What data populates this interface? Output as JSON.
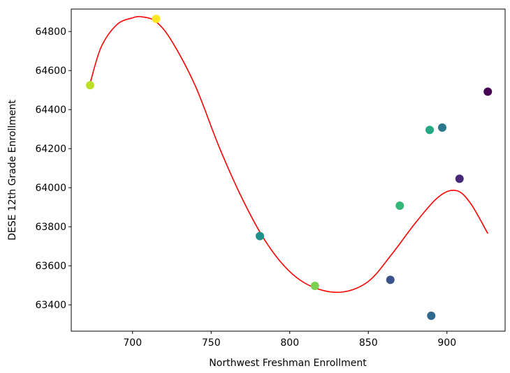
{
  "chart_data": {
    "type": "scatter",
    "title": "",
    "xlabel": "Northwest Freshman Enrollment",
    "ylabel": "DESE 12th Grade Enrollment",
    "xlim": [
      661,
      937
    ],
    "ylim": [
      63265,
      64915
    ],
    "x_ticks": [
      700,
      750,
      800,
      850,
      900
    ],
    "y_ticks": [
      63400,
      63600,
      63800,
      64000,
      64200,
      64400,
      64600,
      64800
    ],
    "grid": false,
    "legend": "none",
    "colormap": "viridis",
    "points": [
      {
        "x": 673,
        "y": 64525,
        "color": "#bddf26"
      },
      {
        "x": 715,
        "y": 64865,
        "color": "#fde725"
      },
      {
        "x": 781,
        "y": 63752,
        "color": "#21918c"
      },
      {
        "x": 816,
        "y": 63497,
        "color": "#7ad151"
      },
      {
        "x": 864,
        "y": 63528,
        "color": "#3b528b"
      },
      {
        "x": 870,
        "y": 63908,
        "color": "#35b779"
      },
      {
        "x": 889,
        "y": 64296,
        "color": "#22a884"
      },
      {
        "x": 890,
        "y": 63344,
        "color": "#31688e"
      },
      {
        "x": 897,
        "y": 64308,
        "color": "#2a788e"
      },
      {
        "x": 908,
        "y": 64046,
        "color": "#482878"
      },
      {
        "x": 926,
        "y": 64492,
        "color": "#440154"
      }
    ],
    "fit_curve": {
      "color": "#ff0000",
      "x": [
        673,
        680,
        690,
        700,
        706,
        715,
        725,
        740,
        755,
        770,
        785,
        800,
        815,
        833,
        850,
        865,
        880,
        895,
        906,
        915,
        926
      ],
      "y": [
        64535,
        64720,
        64835,
        64870,
        64875,
        64850,
        64750,
        64520,
        64210,
        63940,
        63720,
        63570,
        63490,
        63465,
        63520,
        63660,
        63820,
        63955,
        63985,
        63920,
        63765
      ]
    }
  }
}
